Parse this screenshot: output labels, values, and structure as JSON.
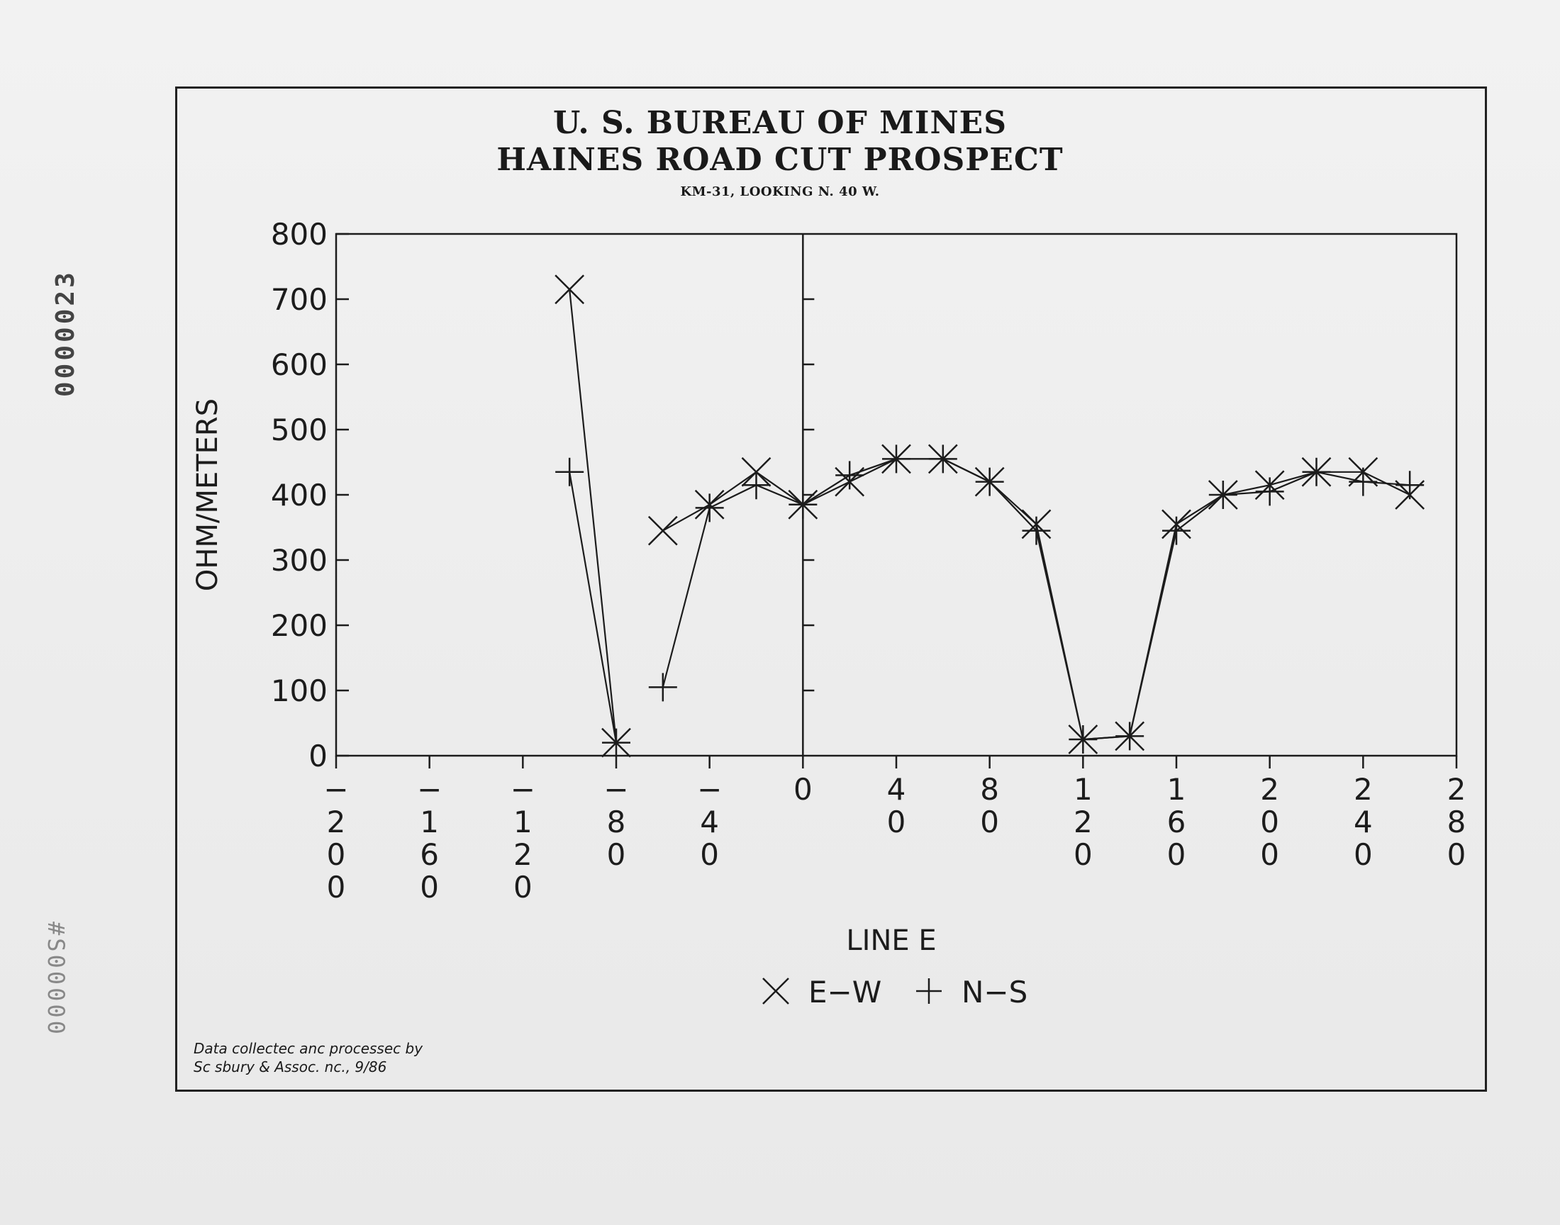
{
  "header": {
    "title": "U. S. BUREAU OF MINES",
    "subtitle": "HAINES ROAD CUT PROSPECT",
    "caption": "KM-31, LOOKING N. 40 W."
  },
  "credit": {
    "line1": "Data collectec anc processec by",
    "line2": "Sc sbury & Assoc. nc., 9/86"
  },
  "stamps": {
    "side_number": "0000023",
    "bottom_number": "#S00000"
  },
  "chart_data": {
    "type": "line",
    "ylabel": "OHM/METERS",
    "xlabel": "LINE E",
    "xlim": [
      -200,
      280
    ],
    "ylim": [
      0,
      800
    ],
    "y_ticks": [
      "0",
      "100",
      "200",
      "300",
      "400",
      "500",
      "600",
      "700",
      "800"
    ],
    "x_ticks": [
      {
        "value": -200,
        "label": [
          "−",
          "2",
          "0",
          "0"
        ]
      },
      {
        "value": -160,
        "label": [
          "−",
          "1",
          "6",
          "0"
        ]
      },
      {
        "value": -120,
        "label": [
          "−",
          "1",
          "2",
          "0"
        ]
      },
      {
        "value": -80,
        "label": [
          "−",
          "8",
          "0"
        ]
      },
      {
        "value": -40,
        "label": [
          "−",
          "4",
          "0"
        ]
      },
      {
        "value": 0,
        "label": [
          "0"
        ]
      },
      {
        "value": 40,
        "label": [
          "4",
          "0"
        ]
      },
      {
        "value": 80,
        "label": [
          "8",
          "0"
        ]
      },
      {
        "value": 120,
        "label": [
          "1",
          "2",
          "0"
        ]
      },
      {
        "value": 160,
        "label": [
          "1",
          "6",
          "0"
        ]
      },
      {
        "value": 200,
        "label": [
          "2",
          "0",
          "0"
        ]
      },
      {
        "value": 240,
        "label": [
          "2",
          "4",
          "0"
        ]
      },
      {
        "value": 280,
        "label": [
          "2",
          "8",
          "0"
        ]
      }
    ],
    "series": [
      {
        "name": "E−W",
        "marker": "x",
        "segments": [
          [
            [
              -100,
              715
            ],
            [
              -80,
              20
            ]
          ],
          [
            [
              -60,
              345
            ],
            [
              -40,
              385
            ],
            [
              -20,
              435
            ],
            [
              0,
              385
            ],
            [
              20,
              420
            ],
            [
              40,
              455
            ],
            [
              60,
              455
            ],
            [
              80,
              420
            ],
            [
              100,
              355
            ],
            [
              120,
              25
            ],
            [
              140,
              30
            ],
            [
              160,
              355
            ],
            [
              180,
              400
            ],
            [
              200,
              415
            ],
            [
              220,
              435
            ],
            [
              240,
              435
            ],
            [
              260,
              400
            ]
          ]
        ]
      },
      {
        "name": "N−S",
        "marker": "+",
        "segments": [
          [
            [
              -100,
              435
            ],
            [
              -80,
              20
            ]
          ],
          [
            [
              -60,
              105
            ],
            [
              -40,
              380
            ],
            [
              -20,
              415
            ],
            [
              0,
              385
            ],
            [
              20,
              430
            ],
            [
              40,
              455
            ],
            [
              60,
              455
            ],
            [
              80,
              420
            ],
            [
              100,
              345
            ],
            [
              120,
              25
            ],
            [
              140,
              30
            ],
            [
              160,
              345
            ],
            [
              180,
              400
            ],
            [
              200,
              405
            ],
            [
              220,
              435
            ],
            [
              240,
              420
            ],
            [
              260,
              415
            ]
          ]
        ]
      }
    ],
    "legend": [
      {
        "marker": "x",
        "label": "E−W"
      },
      {
        "marker": "+",
        "label": "N−S"
      }
    ],
    "legend_position": "bottom-center"
  }
}
